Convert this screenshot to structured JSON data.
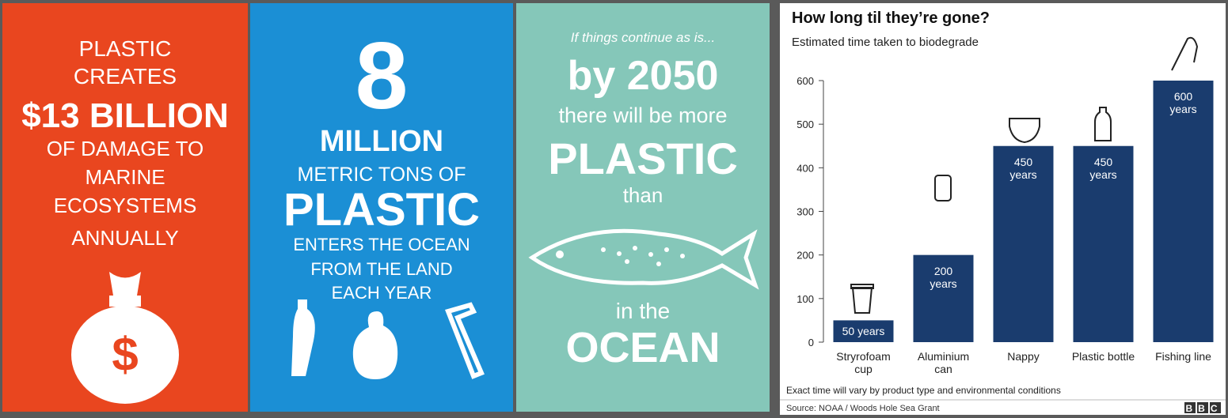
{
  "panels": [
    {
      "lines": [
        "PLASTIC",
        "CREATES",
        "$13 BILLION",
        "OF DAMAGE TO",
        "MARINE",
        "ECOSYSTEMS",
        "ANNUALLY"
      ]
    },
    {
      "lines": [
        "8",
        "MILLION",
        "METRIC TONS OF",
        "PLASTIC",
        "ENTERS THE OCEAN",
        "FROM THE LAND",
        "EACH YEAR"
      ]
    },
    {
      "lines": [
        "If things continue as is...",
        "by 2050",
        "there will be more",
        "PLASTIC",
        "than",
        "in the",
        "OCEAN"
      ]
    }
  ],
  "chart_data": {
    "type": "bar",
    "title": "How long til they’re gone?",
    "subtitle": "Estimated time taken to biodegrade",
    "categories": [
      "Stryrofoam cup",
      "Aluminium can",
      "Nappy",
      "Plastic bottle",
      "Fishing line"
    ],
    "values": [
      50,
      200,
      450,
      450,
      600
    ],
    "value_labels": [
      "50 years",
      "200 years",
      "450 years",
      "450 years",
      "600 years"
    ],
    "color": "#1a3c6e",
    "ylim": [
      0,
      600
    ],
    "yticks": [
      0,
      100,
      200,
      300,
      400,
      500,
      600
    ],
    "note": "Exact time will vary by product type and environmental conditions",
    "source": "Source: NOAA / Woods Hole Sea Grant",
    "logo": "BBC"
  }
}
